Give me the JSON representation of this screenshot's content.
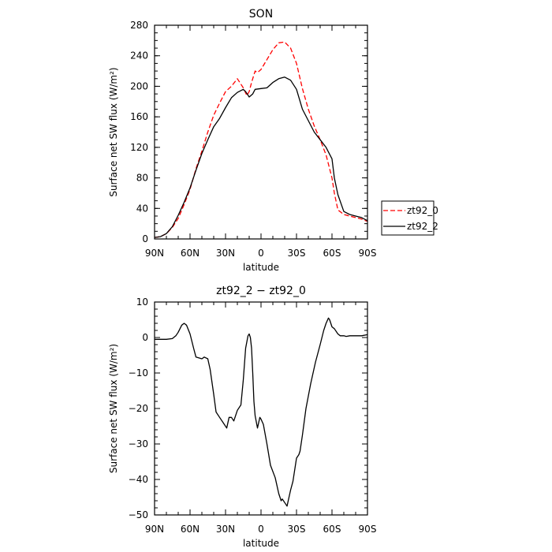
{
  "chart_data": [
    {
      "type": "line",
      "title": "SON",
      "xlabel": "latitude",
      "ylabel": "Surface net SW flux (W/m²)",
      "xlim": [
        90,
        -90
      ],
      "ylim": [
        0,
        280
      ],
      "x_ticks": [
        {
          "value": 90,
          "label": "90N"
        },
        {
          "value": 60,
          "label": "60N"
        },
        {
          "value": 30,
          "label": "30N"
        },
        {
          "value": 0,
          "label": "0"
        },
        {
          "value": -30,
          "label": "30S"
        },
        {
          "value": -60,
          "label": "60S"
        },
        {
          "value": -90,
          "label": "90S"
        }
      ],
      "y_ticks": [
        {
          "value": 0,
          "label": "0"
        },
        {
          "value": 40,
          "label": "40"
        },
        {
          "value": 80,
          "label": "80"
        },
        {
          "value": 120,
          "label": "120"
        },
        {
          "value": 160,
          "label": "160"
        },
        {
          "value": 200,
          "label": "200"
        },
        {
          "value": 240,
          "label": "240"
        },
        {
          "value": 280,
          "label": "280"
        }
      ],
      "grid": false,
      "legend_position": "right-outside",
      "series": [
        {
          "name": "zt92_0",
          "color": "#ff0000",
          "dash": "dashed",
          "x": [
            90,
            85,
            80,
            75,
            70,
            65,
            60,
            55,
            50,
            45,
            40,
            35,
            30,
            25,
            20,
            15,
            12,
            10,
            8,
            5,
            3,
            0,
            -5,
            -10,
            -15,
            -20,
            -25,
            -30,
            -35,
            -40,
            -45,
            -50,
            -55,
            -60,
            -62,
            -65,
            -70,
            -75,
            -80,
            -85,
            -90
          ],
          "y": [
            2,
            3,
            7,
            15,
            27,
            45,
            65,
            92,
            115,
            140,
            162,
            178,
            193,
            200,
            210,
            198,
            188,
            193,
            205,
            220,
            218,
            222,
            235,
            248,
            257,
            258,
            250,
            230,
            197,
            170,
            148,
            130,
            110,
            80,
            60,
            38,
            32,
            30,
            28,
            26,
            23
          ]
        },
        {
          "name": "zt92_2",
          "color": "#000000",
          "dash": "solid",
          "x": [
            90,
            85,
            80,
            75,
            70,
            65,
            60,
            55,
            50,
            45,
            40,
            35,
            30,
            25,
            20,
            15,
            13,
            10,
            7,
            5,
            0,
            -5,
            -10,
            -15,
            -20,
            -25,
            -30,
            -35,
            -40,
            -45,
            -50,
            -55,
            -60,
            -62,
            -65,
            -70,
            -75,
            -80,
            -85,
            -90
          ],
          "y": [
            2,
            3,
            7,
            16,
            31,
            48,
            67,
            90,
            112,
            130,
            147,
            158,
            172,
            185,
            192,
            196,
            193,
            186,
            190,
            196,
            197,
            198,
            205,
            210,
            212,
            208,
            196,
            170,
            155,
            140,
            130,
            120,
            105,
            80,
            58,
            36,
            32,
            30,
            28,
            24
          ]
        }
      ]
    },
    {
      "type": "line",
      "title": "zt92_2 − zt92_0",
      "xlabel": "latitude",
      "ylabel": "Surface net SW flux (W/m²)",
      "xlim": [
        90,
        -90
      ],
      "ylim": [
        -50,
        10
      ],
      "x_ticks": [
        {
          "value": 90,
          "label": "90N"
        },
        {
          "value": 60,
          "label": "60N"
        },
        {
          "value": 30,
          "label": "30N"
        },
        {
          "value": 0,
          "label": "0"
        },
        {
          "value": -30,
          "label": "30S"
        },
        {
          "value": -60,
          "label": "60S"
        },
        {
          "value": -90,
          "label": "90S"
        }
      ],
      "y_ticks": [
        {
          "value": -50,
          "label": "−50"
        },
        {
          "value": -40,
          "label": "−40"
        },
        {
          "value": -30,
          "label": "−30"
        },
        {
          "value": -20,
          "label": "−20"
        },
        {
          "value": -10,
          "label": "−10"
        },
        {
          "value": 0,
          "label": "0"
        },
        {
          "value": 10,
          "label": "10"
        }
      ],
      "grid": false,
      "series": [
        {
          "color": "#000000",
          "dash": "solid",
          "x": [
            90,
            85,
            80,
            75,
            72,
            70,
            67,
            65,
            63,
            60,
            57,
            55,
            50,
            48,
            45,
            43,
            40,
            38,
            35,
            32,
            29,
            27,
            25,
            23,
            20,
            17,
            15,
            13,
            11,
            10,
            9,
            8,
            7,
            6,
            5,
            3,
            1,
            0,
            -2,
            -5,
            -8,
            -12,
            -15,
            -17,
            -18,
            -20,
            -22,
            -23,
            -25,
            -27,
            -30,
            -32,
            -33,
            -35,
            -38,
            -42,
            -46,
            -50,
            -53,
            -55,
            -57,
            -58,
            -60,
            -62,
            -65,
            -67,
            -70,
            -72,
            -75,
            -80,
            -85,
            -90
          ],
          "y": [
            -0.5,
            -0.5,
            -0.5,
            -0.3,
            0.5,
            1.5,
            3.5,
            4,
            3.5,
            1,
            -3,
            -5.5,
            -6,
            -5.5,
            -6,
            -9,
            -16,
            -21,
            -22.5,
            -24,
            -25.5,
            -22.5,
            -22.5,
            -23.5,
            -20.5,
            -19,
            -12,
            -3,
            0.5,
            1,
            0,
            -3,
            -10,
            -18,
            -22,
            -25.5,
            -22.5,
            -23,
            -24.5,
            -30,
            -36,
            -39.5,
            -44,
            -46,
            -45.5,
            -46.5,
            -47.5,
            -46,
            -43,
            -40.5,
            -34,
            -33,
            -32,
            -27.5,
            -20,
            -13,
            -7,
            -2,
            2,
            4,
            5.5,
            5,
            3,
            2.5,
            1,
            0.5,
            0.5,
            0.3,
            0.5,
            0.5,
            0.5,
            0.8
          ]
        }
      ]
    }
  ]
}
